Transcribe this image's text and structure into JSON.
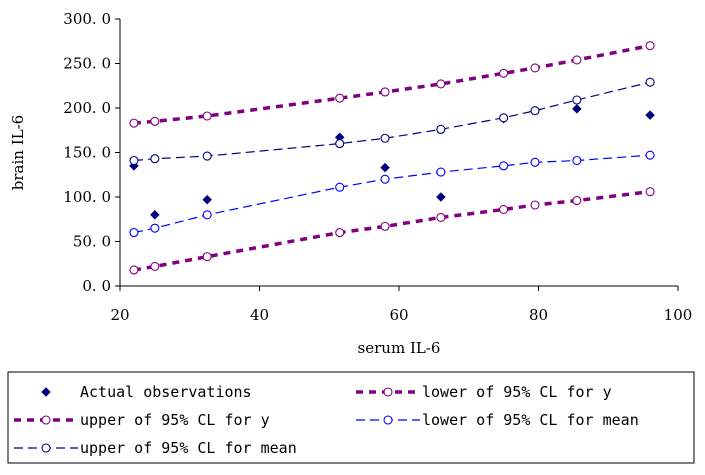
{
  "chart_data": {
    "type": "scatter",
    "title": "",
    "xlabel": "serum IL-6",
    "ylabel": "brain IL-6",
    "xlim": [
      20,
      100
    ],
    "ylim": [
      0,
      300
    ],
    "x_ticks": [
      20,
      40,
      60,
      80,
      100
    ],
    "y_ticks": [
      0,
      50,
      100,
      150,
      200,
      250,
      300
    ],
    "x_tick_labels": [
      "20",
      "40",
      "60",
      "80",
      "100"
    ],
    "y_tick_labels": [
      "0. 0",
      "50. 0",
      "100. 0",
      "150. 0",
      "200. 0",
      "250. 0",
      "300. 0"
    ],
    "grid": false,
    "legend_position": "bottom",
    "series": [
      {
        "name": "Actual observations",
        "style": "markers",
        "marker": "diamond",
        "color": "#000080",
        "x": [
          22,
          25,
          32.5,
          51.5,
          58,
          66,
          75,
          79.5,
          85.5,
          96
        ],
        "y": [
          135,
          80,
          97,
          167,
          133,
          100,
          188,
          139,
          199,
          192
        ]
      },
      {
        "name": "lower of 95% CL for y",
        "style": "dashed-thick",
        "color": "#800080",
        "x": [
          22,
          25,
          32.5,
          51.5,
          58,
          66,
          75,
          79.5,
          85.5,
          96
        ],
        "y": [
          18,
          22,
          33,
          60,
          67,
          77,
          86,
          91,
          96,
          106
        ]
      },
      {
        "name": "upper of 95% CL for y",
        "style": "dashed-thick",
        "color": "#800080",
        "x": [
          22,
          25,
          32.5,
          51.5,
          58,
          66,
          75,
          79.5,
          85.5,
          96
        ],
        "y": [
          183,
          185,
          191,
          211,
          218,
          227,
          239,
          245,
          254,
          270
        ]
      },
      {
        "name": "lower of 95% CL for mean",
        "style": "dashed-thin",
        "color": "#0000ff",
        "x": [
          22,
          25,
          32.5,
          51.5,
          58,
          66,
          75,
          79.5,
          85.5,
          96
        ],
        "y": [
          60,
          65,
          80,
          111,
          120,
          128,
          135,
          139,
          141,
          147
        ]
      },
      {
        "name": "upper of 95% CL for mean",
        "style": "dashed-thin",
        "color": "#000080",
        "x": [
          22,
          25,
          32.5,
          51.5,
          58,
          66,
          75,
          79.5,
          85.5,
          96
        ],
        "y": [
          141,
          143,
          146,
          160,
          166,
          176,
          189,
          197,
          209,
          229
        ]
      }
    ]
  }
}
